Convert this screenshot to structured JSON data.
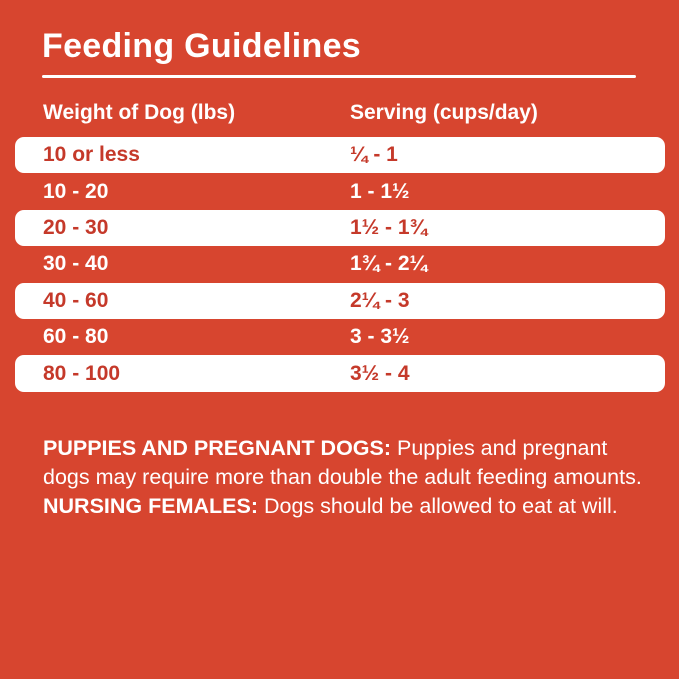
{
  "title": "Feeding Guidelines",
  "table": {
    "columns": [
      "Weight of Dog (lbs)",
      "Serving (cups/day)"
    ],
    "rows": [
      {
        "weight": "10 or less",
        "serving": "¼ - 1"
      },
      {
        "weight": "10 - 20",
        "serving": "1 - 1½"
      },
      {
        "weight": "20 - 30",
        "serving": "1½ - 1¾"
      },
      {
        "weight": "30 - 40",
        "serving": "1¾ - 2¼"
      },
      {
        "weight": "40 - 60",
        "serving": "2¼ - 3"
      },
      {
        "weight": "60 - 80",
        "serving": "3 - 3½"
      },
      {
        "weight": "80 - 100",
        "serving": "3½ - 4"
      }
    ]
  },
  "notes": {
    "segments": [
      {
        "text": "PUPPIES AND PREGNANT DOGS: ",
        "bold": true
      },
      {
        "text": "Puppies and pregnant dogs may require more than double the adult feeding amounts. ",
        "bold": false
      },
      {
        "text": "NURSING FEMALES: ",
        "bold": true
      },
      {
        "text": "Dogs should be allowed to eat at will.",
        "bold": false
      }
    ]
  },
  "colors": {
    "background": "#D7452F",
    "row_highlight": "#FFFFFF",
    "row_highlight_text": "#C5392A",
    "text": "#FFFFFF"
  }
}
